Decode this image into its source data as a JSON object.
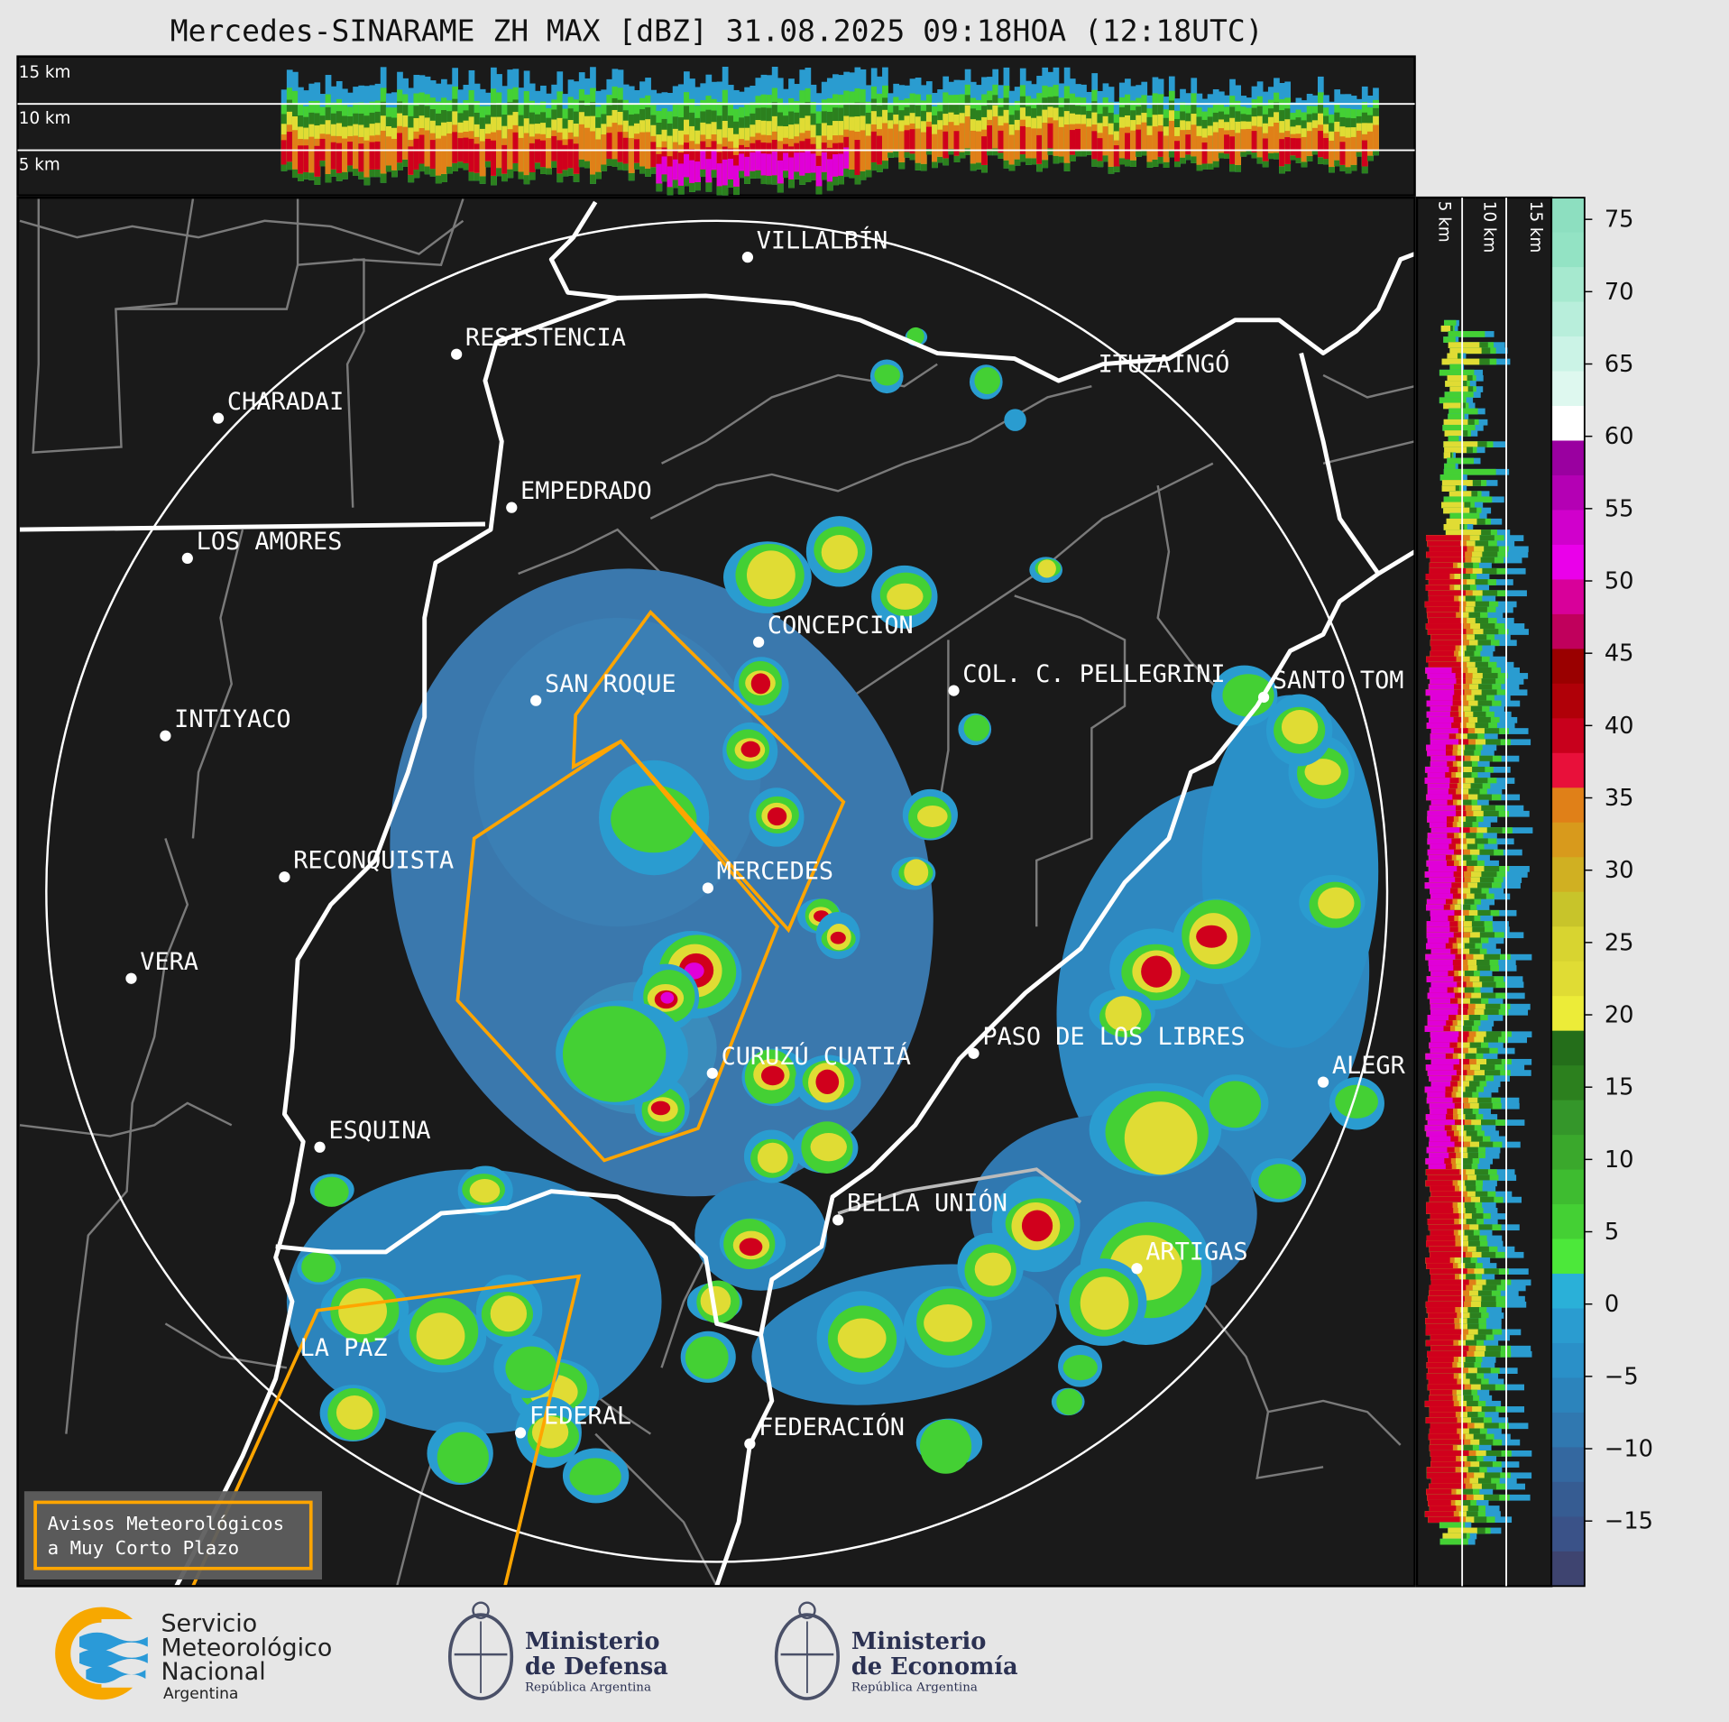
{
  "title": "Mercedes-SINARAME ZH MAX [dBZ] 31.08.2025 09:18HOA (12:18UTC)",
  "cross_section_top": {
    "labels": [
      "15 km",
      "10 km",
      "5 km"
    ]
  },
  "cross_section_side": {
    "labels": [
      "5 km",
      "10 km",
      "15 km"
    ]
  },
  "cities": [
    "VILLALBÍN",
    "RESISTENCIA",
    "CHARADAI",
    "EMPEDRADO",
    "LOS AMORES",
    "ITUZAINGÓ",
    "CONCEPCION",
    "SAN ROQUE",
    "COL. C. PELLEGRINI",
    "SANTO TOM",
    "INTIYACO",
    "RECONQUISTA",
    "MERCEDES",
    "VERA",
    "PASO DE LOS LIBRES",
    "CURUZÚ CUATIÁ",
    "ALEGR",
    "ESQUINA",
    "BELLA UNIÓN",
    "ARTIGAS",
    "LA PAZ",
    "FEDERAL",
    "FEDERACIÓN"
  ],
  "colorbar": {
    "unit": "dBZ",
    "range": [
      -19.5,
      76.5
    ],
    "ticks": [
      "75",
      "70",
      "65",
      "60",
      "55",
      "50",
      "45",
      "40",
      "35",
      "30",
      "25",
      "20",
      "15",
      "10",
      "5",
      "0",
      "−5",
      "−10",
      "−15"
    ],
    "colors_top_to_bottom": [
      "#8ddfc0",
      "#93e3c4",
      "#a6e9cf",
      "#b8eedb",
      "#cbf3e6",
      "#def8ef",
      "#ffffff",
      "#9a00a0",
      "#b400b4",
      "#d000cc",
      "#ea00ea",
      "#d8009a",
      "#c0005c",
      "#9a0000",
      "#b00008",
      "#c8001c",
      "#e8103a",
      "#e08018",
      "#d89a1c",
      "#d0b022",
      "#c8c42a",
      "#d8d430",
      "#e0dc34",
      "#ecec38",
      "#246e1a",
      "#2c801e",
      "#34962a",
      "#3aa82c",
      "#3ebc30",
      "#44d034",
      "#4ce83a",
      "#2ab0d8",
      "#2a9cd0",
      "#2a90c8",
      "#2c84bc",
      "#3078b0",
      "#3468a0",
      "#365c92",
      "#3a5288",
      "#3e4470"
    ]
  },
  "warning_legend": {
    "line1": "Avisos Meteorológicos",
    "line2": "a Muy Corto Plazo",
    "color": "#ffa500"
  },
  "logos": {
    "smn": {
      "line1": "Servicio",
      "line2": "Meteorológico",
      "line3": "Nacional",
      "line4": "Argentina"
    },
    "defensa": {
      "line1": "Ministerio",
      "line2": "de Defensa",
      "line3": "República Argentina"
    },
    "economia": {
      "line1": "Ministerio",
      "line2": "de Economía",
      "line3": "República Argentina"
    }
  }
}
